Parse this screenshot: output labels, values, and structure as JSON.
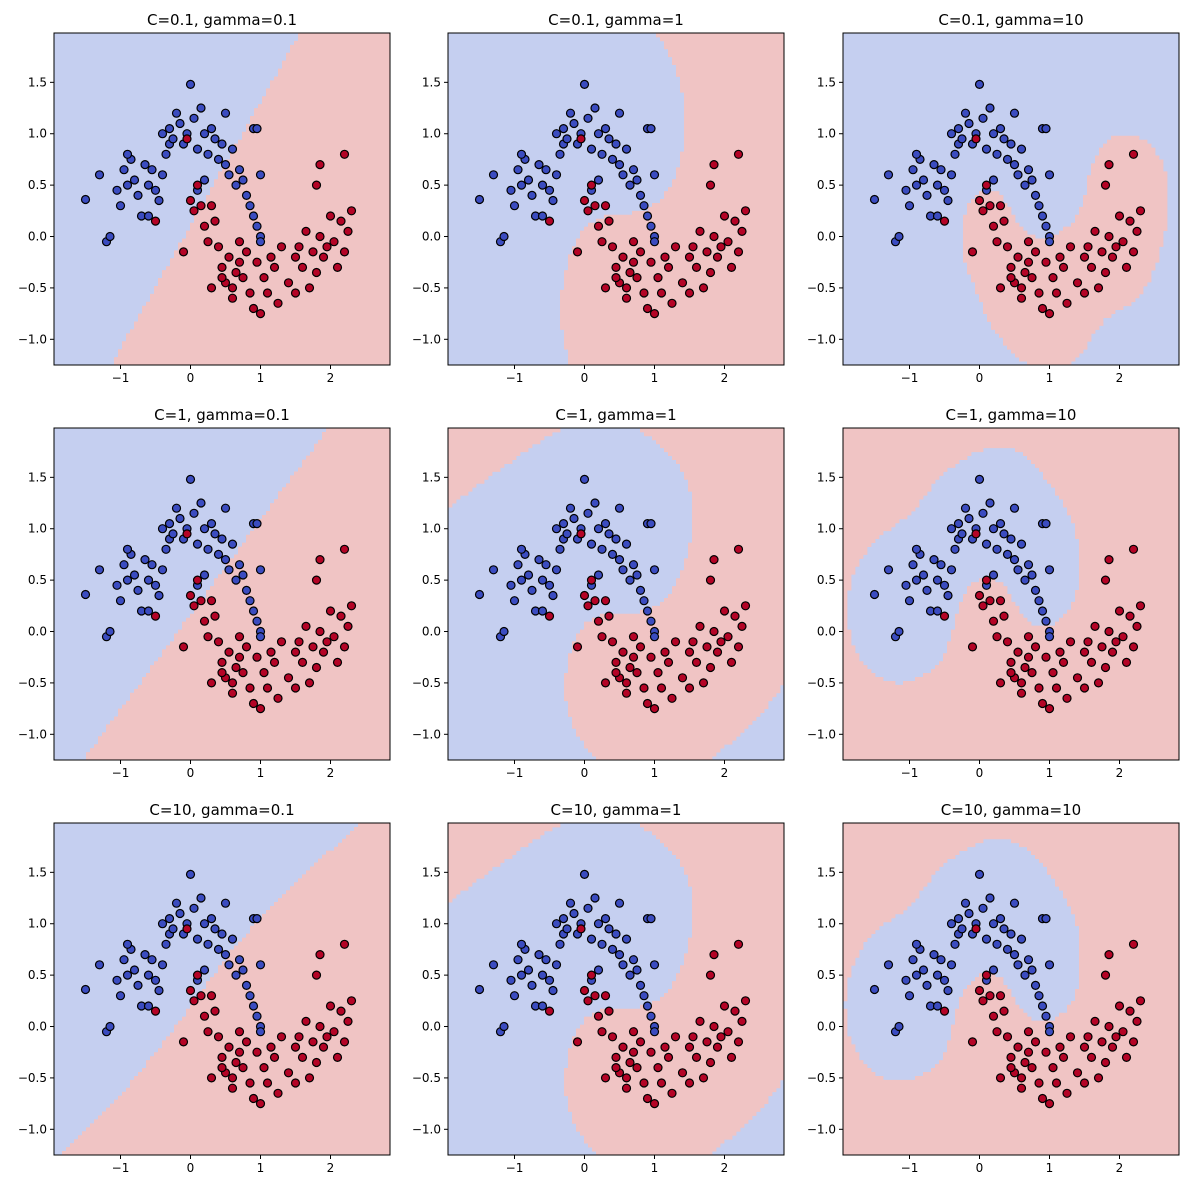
{
  "figure": {
    "background": "#ffffff",
    "colors": {
      "class0_region": "#c5cff0",
      "class1_region": "#f0c4c4",
      "class0_point": "#3b4cc0",
      "class1_point": "#b40426",
      "point_edge": "#000000"
    },
    "xticks": [
      -1,
      0,
      1,
      2
    ],
    "xtick_labels": [
      "−1",
      "0",
      "1",
      "2"
    ],
    "yticks": [
      -1.0,
      -0.5,
      0.0,
      0.5,
      1.0,
      1.5
    ],
    "ytick_labels": [
      "−1.0",
      "−0.5",
      "0.0",
      "0.5",
      "1.0",
      "1.5"
    ],
    "xlim": [
      -1.95,
      2.85
    ],
    "ylim": [
      -1.25,
      1.98
    ]
  },
  "chart_data": [
    {
      "type": "scatter",
      "title": "C=0.1, gamma=0.1",
      "C": 0.1,
      "gamma": 0.1
    },
    {
      "type": "scatter",
      "title": "C=0.1, gamma=1",
      "C": 0.1,
      "gamma": 1
    },
    {
      "type": "scatter",
      "title": "C=0.1, gamma=10",
      "C": 0.1,
      "gamma": 10
    },
    {
      "type": "scatter",
      "title": "C=1, gamma=0.1",
      "C": 1,
      "gamma": 0.1
    },
    {
      "type": "scatter",
      "title": "C=1, gamma=1",
      "C": 1,
      "gamma": 1
    },
    {
      "type": "scatter",
      "title": "C=1, gamma=10",
      "C": 1,
      "gamma": 10
    },
    {
      "type": "scatter",
      "title": "C=10, gamma=0.1",
      "C": 10,
      "gamma": 0.1
    },
    {
      "type": "scatter",
      "title": "C=10, gamma=1",
      "C": 10,
      "gamma": 1
    },
    {
      "type": "scatter",
      "title": "C=10, gamma=10",
      "C": 10,
      "gamma": 10
    }
  ],
  "points": {
    "class0": [
      [
        -1.5,
        0.36
      ],
      [
        -1.3,
        0.6
      ],
      [
        -1.2,
        -0.05
      ],
      [
        -1.15,
        0.0
      ],
      [
        -1.05,
        0.45
      ],
      [
        -1.0,
        0.3
      ],
      [
        -0.95,
        0.65
      ],
      [
        -0.9,
        0.5
      ],
      [
        -0.85,
        0.75
      ],
      [
        -0.8,
        0.55
      ],
      [
        -0.75,
        0.4
      ],
      [
        -0.7,
        0.2
      ],
      [
        -0.65,
        0.7
      ],
      [
        -0.6,
        0.5
      ],
      [
        -0.55,
        0.65
      ],
      [
        -0.5,
        0.45
      ],
      [
        -0.45,
        0.35
      ],
      [
        -0.4,
        0.6
      ],
      [
        -0.35,
        0.8
      ],
      [
        -0.3,
        0.9
      ],
      [
        -0.3,
        1.05
      ],
      [
        -0.25,
        0.95
      ],
      [
        -0.2,
        1.2
      ],
      [
        -0.15,
        1.1
      ],
      [
        -0.1,
        0.9
      ],
      [
        -0.05,
        1.0
      ],
      [
        0.0,
        1.48
      ],
      [
        0.05,
        1.15
      ],
      [
        0.1,
        0.85
      ],
      [
        0.15,
        1.25
      ],
      [
        0.2,
        1.0
      ],
      [
        0.25,
        0.8
      ],
      [
        0.3,
        1.05
      ],
      [
        0.35,
        0.95
      ],
      [
        0.4,
        0.75
      ],
      [
        0.45,
        0.9
      ],
      [
        0.5,
        0.7
      ],
      [
        0.55,
        0.6
      ],
      [
        0.6,
        0.85
      ],
      [
        0.65,
        0.5
      ],
      [
        0.7,
        0.65
      ],
      [
        0.75,
        0.55
      ],
      [
        0.8,
        0.4
      ],
      [
        0.85,
        0.3
      ],
      [
        0.9,
        0.2
      ],
      [
        0.95,
        0.1
      ],
      [
        1.0,
        0.0
      ],
      [
        1.0,
        -0.05
      ],
      [
        -0.9,
        0.8
      ],
      [
        -0.6,
        0.2
      ],
      [
        0.5,
        1.2
      ],
      [
        0.9,
        1.05
      ],
      [
        -0.4,
        1.0
      ],
      [
        0.2,
        0.55
      ],
      [
        0.1,
        0.45
      ],
      [
        0.95,
        1.05
      ],
      [
        1.0,
        0.6
      ]
    ],
    "class1": [
      [
        -0.5,
        0.15
      ],
      [
        -0.1,
        -0.15
      ],
      [
        0.0,
        0.35
      ],
      [
        0.05,
        0.25
      ],
      [
        0.1,
        0.5
      ],
      [
        0.15,
        0.3
      ],
      [
        0.2,
        0.1
      ],
      [
        0.25,
        -0.05
      ],
      [
        0.3,
        0.3
      ],
      [
        0.35,
        0.15
      ],
      [
        0.4,
        -0.1
      ],
      [
        0.45,
        -0.3
      ],
      [
        0.5,
        -0.45
      ],
      [
        0.55,
        -0.2
      ],
      [
        0.6,
        -0.5
      ],
      [
        0.65,
        -0.35
      ],
      [
        0.7,
        -0.05
      ],
      [
        0.75,
        -0.4
      ],
      [
        0.8,
        -0.15
      ],
      [
        0.85,
        -0.55
      ],
      [
        0.9,
        -0.7
      ],
      [
        0.95,
        -0.25
      ],
      [
        1.0,
        -0.75
      ],
      [
        1.05,
        -0.4
      ],
      [
        1.1,
        -0.55
      ],
      [
        1.15,
        -0.2
      ],
      [
        1.2,
        -0.3
      ],
      [
        1.3,
        -0.1
      ],
      [
        1.4,
        -0.45
      ],
      [
        1.5,
        -0.2
      ],
      [
        1.55,
        -0.1
      ],
      [
        1.6,
        -0.3
      ],
      [
        1.65,
        0.05
      ],
      [
        1.7,
        -0.5
      ],
      [
        1.75,
        -0.15
      ],
      [
        1.8,
        -0.35
      ],
      [
        1.85,
        0.0
      ],
      [
        1.9,
        -0.2
      ],
      [
        1.95,
        -0.1
      ],
      [
        2.0,
        0.2
      ],
      [
        2.05,
        -0.05
      ],
      [
        2.1,
        -0.3
      ],
      [
        2.15,
        0.15
      ],
      [
        2.2,
        -0.15
      ],
      [
        2.25,
        0.05
      ],
      [
        2.3,
        0.25
      ],
      [
        2.2,
        0.8
      ],
      [
        1.85,
        0.7
      ],
      [
        1.8,
        0.5
      ],
      [
        -0.05,
        0.95
      ],
      [
        0.3,
        -0.5
      ],
      [
        0.6,
        -0.6
      ],
      [
        1.25,
        -0.65
      ],
      [
        0.45,
        -0.4
      ],
      [
        0.7,
        -0.25
      ],
      [
        1.5,
        -0.55
      ]
    ]
  }
}
